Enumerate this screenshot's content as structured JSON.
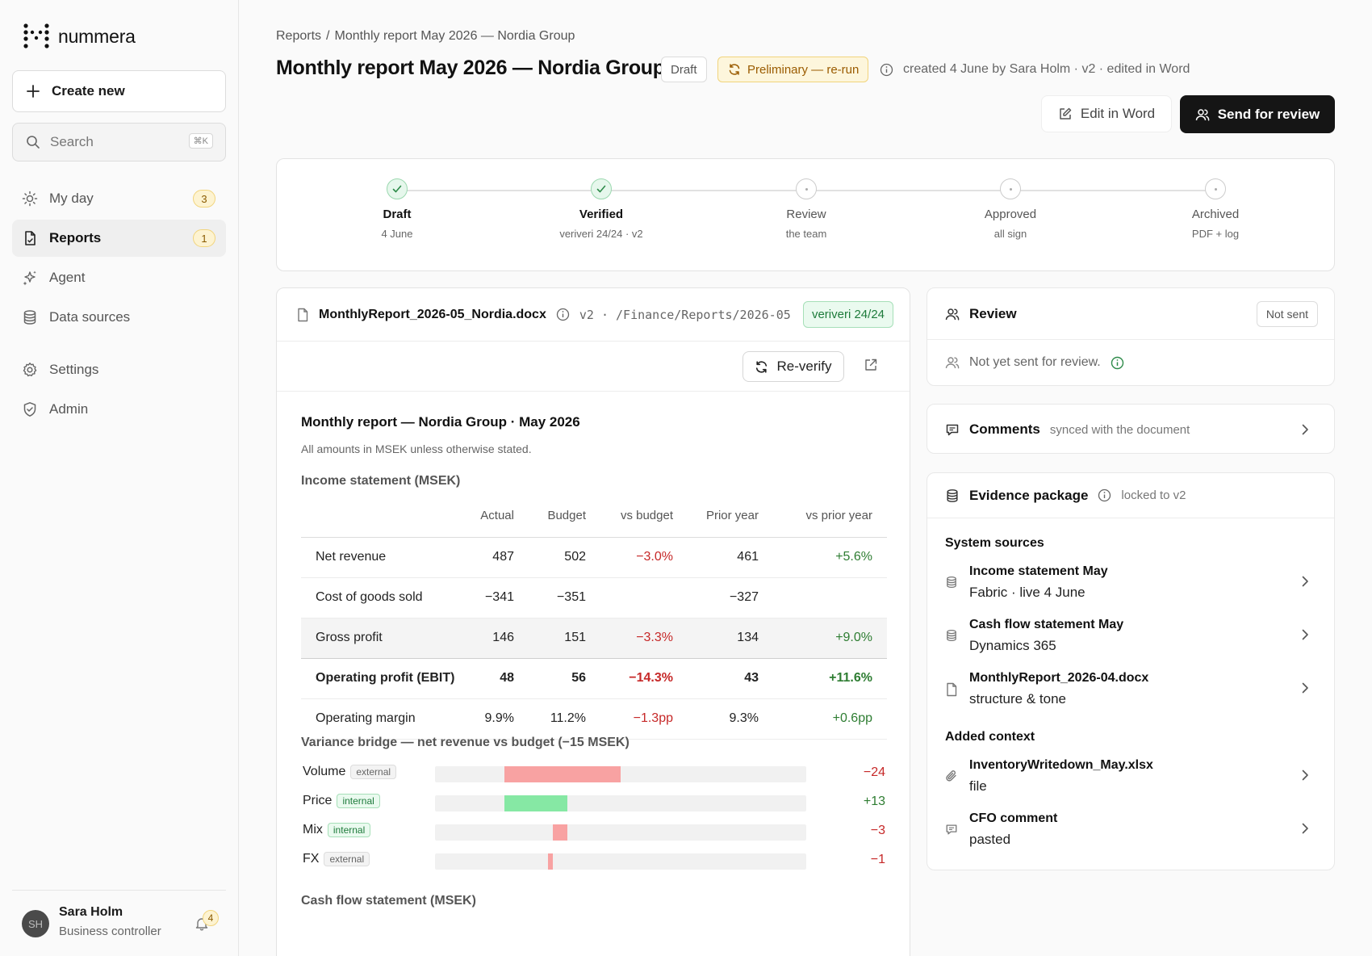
{
  "app": {
    "name": "nummera"
  },
  "sidebar": {
    "create_label": "Create new",
    "search_placeholder": "Search",
    "search_shortcut": "⌘K",
    "items": [
      {
        "label": "My day",
        "icon": "sun-icon",
        "badge": "3"
      },
      {
        "label": "Reports",
        "icon": "document-icon",
        "badge": "1",
        "active": true
      },
      {
        "label": "Agent",
        "icon": "sparkle-icon"
      },
      {
        "label": "Data sources",
        "icon": "database-icon"
      },
      {
        "label": "Settings",
        "icon": "gear-icon"
      },
      {
        "label": "Admin",
        "icon": "shield-icon"
      }
    ],
    "user": {
      "initials": "SH",
      "name": "Sara Holm",
      "role": "Business controller",
      "notifications": "4"
    }
  },
  "header": {
    "breadcrumb": [
      "Reports",
      "Monthly report May 2026 — Nordia Group"
    ],
    "title": "Monthly report May 2026 — Nordia Group",
    "status": "Draft",
    "flag": "Preliminary — re-run",
    "meta": "created 4 June by Sara Holm · v2 · edited in Word",
    "edit_label": "Edit in Word",
    "send_label": "Send for review"
  },
  "stepper": [
    {
      "label": "Draft",
      "sub": "4 June",
      "done": true
    },
    {
      "label": "Verified",
      "sub": "veriveri 24/24 · v2",
      "done": true
    },
    {
      "label": "Review",
      "sub": "the team",
      "done": false
    },
    {
      "label": "Approved",
      "sub": "all sign",
      "done": false
    },
    {
      "label": "Archived",
      "sub": "PDF + log",
      "done": false
    }
  ],
  "document": {
    "filename": "MonthlyReport_2026-05_Nordia.docx",
    "path": "v2 · /Finance/Reports/2026-05",
    "verified": "veriveri 24/24",
    "reverify_label": "Re-verify",
    "heading": "Monthly report — Nordia Group · May 2026",
    "note": "All amounts in MSEK unless otherwise stated.",
    "income_title": "Income statement (MSEK)",
    "columns": [
      "",
      "Actual",
      "Budget",
      "vs budget",
      "Prior year",
      "vs prior year"
    ],
    "rows": [
      {
        "cells": [
          "Net revenue",
          "487",
          "502",
          "−3.0%",
          "461",
          "+5.6%"
        ]
      },
      {
        "cells": [
          "Cost of goods sold",
          "−341",
          "−351",
          "",
          "−327",
          ""
        ]
      },
      {
        "cells": [
          "Gross profit",
          "146",
          "151",
          "−3.3%",
          "134",
          "+9.0%"
        ]
      },
      {
        "cells": [
          "Operating profit (EBIT)",
          "48",
          "56",
          "−14.3%",
          "43",
          "+11.6%"
        ]
      },
      {
        "cells": [
          "Operating margin",
          "9.9%",
          "11.2%",
          "−1.3pp",
          "9.3%",
          "+0.6pp"
        ]
      }
    ],
    "bridge_title": "Variance bridge — net revenue vs budget (−15 MSEK)",
    "bridge": [
      {
        "label": "Volume",
        "tag": "external",
        "value": -24,
        "display": "−24"
      },
      {
        "label": "Price",
        "tag": "internal",
        "value": 13,
        "display": "+13"
      },
      {
        "label": "Mix",
        "tag": "internal",
        "value": -3,
        "display": "−3"
      },
      {
        "label": "FX",
        "tag": "external",
        "value": -1,
        "display": "−1"
      }
    ],
    "cashflow_title": "Cash flow statement (MSEK)"
  },
  "review": {
    "title": "Review",
    "status": "Not sent",
    "body": "Not yet sent for review."
  },
  "comments": {
    "title": "Comments",
    "sub": "synced with the document"
  },
  "evidence": {
    "title": "Evidence package",
    "sub": "locked to v2",
    "system_title": "System sources",
    "system": [
      {
        "icon": "database-icon",
        "title": "Income statement May",
        "sub": "Fabric · live 4 June"
      },
      {
        "icon": "database-icon",
        "title": "Cash flow statement May",
        "sub": "Dynamics 365"
      },
      {
        "icon": "document-icon",
        "title": "MonthlyReport_2026-04.docx",
        "sub": "structure & tone"
      }
    ],
    "context_title": "Added context",
    "context": [
      {
        "icon": "paperclip-icon",
        "title": "InventoryWritedown_May.xlsx",
        "sub": "file"
      },
      {
        "icon": "comment-icon",
        "title": "CFO comment",
        "sub": "pasted"
      }
    ]
  }
}
